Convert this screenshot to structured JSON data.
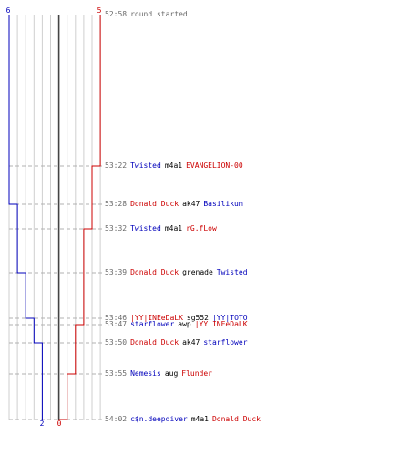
{
  "colors": {
    "blue": "#0000bb",
    "red": "#cc0000",
    "grid": "#cfcfcf",
    "center": "#444444",
    "time": "#6a6a6a",
    "weapon": "#000000"
  },
  "score": {
    "start_left": "6",
    "start_right": "5",
    "end_left": "2",
    "end_right": "0"
  },
  "events": [
    {
      "time": "52:58",
      "text": "round started",
      "kind": "start"
    },
    {
      "time": "53:22",
      "killer": "Twisted",
      "killer_team": "blue",
      "weapon": "m4a1",
      "victim": "EVANGELION-00",
      "victim_team": "red"
    },
    {
      "time": "53:28",
      "killer": "Donald Duck",
      "killer_team": "red",
      "weapon": "ak47",
      "victim": "Basilikum",
      "victim_team": "blue"
    },
    {
      "time": "53:32",
      "killer": "Twisted",
      "killer_team": "blue",
      "weapon": "m4a1",
      "victim": "rG.fLow",
      "victim_team": "red"
    },
    {
      "time": "53:39",
      "killer": "Donald Duck",
      "killer_team": "red",
      "weapon": "grenade",
      "victim": "Twisted",
      "victim_team": "blue"
    },
    {
      "time": "53:46",
      "killer": "|YY|INEeDaLK",
      "killer_team": "red",
      "weapon": "sg552",
      "victim": "|YY|TOTO",
      "victim_team": "blue"
    },
    {
      "time": "53:47",
      "killer": "starflower",
      "killer_team": "blue",
      "weapon": "awp",
      "victim": "|YY|INEeDaLK",
      "victim_team": "red"
    },
    {
      "time": "53:50",
      "killer": "Donald Duck",
      "killer_team": "red",
      "weapon": "ak47",
      "victim": "starflower",
      "victim_team": "blue"
    },
    {
      "time": "53:55",
      "killer": "Nemesis",
      "killer_team": "blue",
      "weapon": "aug",
      "victim": "Flunder",
      "victim_team": "red"
    },
    {
      "time": "54:02",
      "killer": "c$n.deepdiver",
      "killer_team": "blue",
      "weapon": "m4a1",
      "victim": "Donald Duck",
      "victim_team": "red"
    }
  ]
}
